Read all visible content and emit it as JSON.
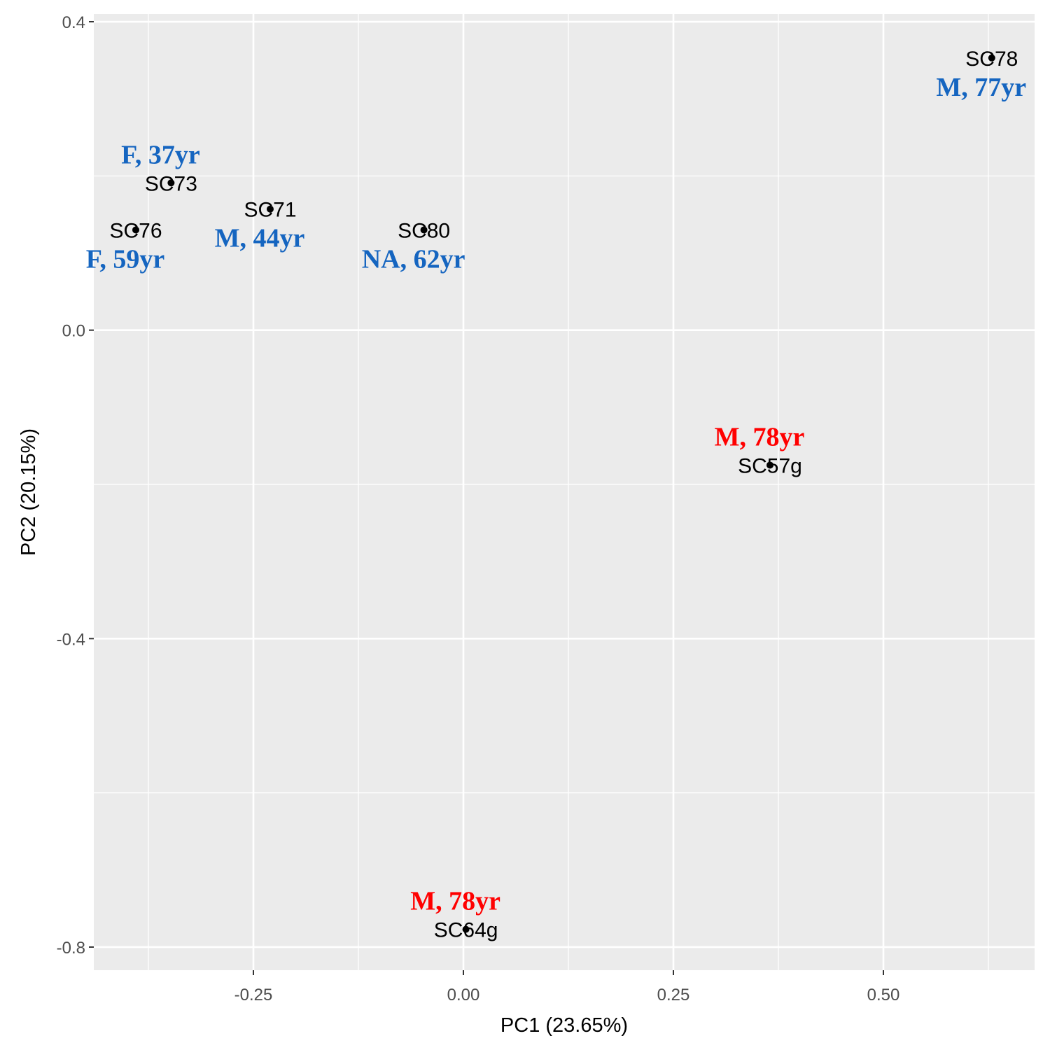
{
  "chart_data": {
    "type": "scatter",
    "title": "",
    "xlabel": "PC1 (23.65%)",
    "ylabel": "PC2 (20.15%)",
    "xlim": [
      -0.44,
      0.68
    ],
    "ylim": [
      -0.83,
      0.41
    ],
    "x_ticks": [
      -0.25,
      0.0,
      0.25,
      0.5
    ],
    "x_tick_labels": [
      "-0.25",
      "0.00",
      "0.25",
      "0.50"
    ],
    "y_ticks": [
      0.4,
      0.0,
      -0.4,
      -0.8
    ],
    "y_tick_labels": [
      "0.4",
      "0.0",
      "-0.4",
      "-0.8"
    ],
    "grid": true,
    "legend": "none",
    "colors": {
      "panel": "#ebebeb",
      "grid": "#ffffff",
      "point": "#000000",
      "annotation_blue": "#1565c0",
      "annotation_red": "#ff0000"
    },
    "points": [
      {
        "label": "SC78",
        "x": 0.629,
        "y": 0.353,
        "annotation": "M, 77yr",
        "annotation_color": "blue",
        "annotation_position": "below"
      },
      {
        "label": "SC73",
        "x": -0.348,
        "y": 0.191,
        "annotation": "F, 37yr",
        "annotation_color": "blue",
        "annotation_position": "above"
      },
      {
        "label": "SC71",
        "x": -0.23,
        "y": 0.157,
        "annotation": "M, 44yr",
        "annotation_color": "blue",
        "annotation_position": "below"
      },
      {
        "label": "SC76",
        "x": -0.39,
        "y": 0.13,
        "annotation": "F, 59yr",
        "annotation_color": "blue",
        "annotation_position": "below"
      },
      {
        "label": "SC80",
        "x": -0.047,
        "y": 0.13,
        "annotation": "NA, 62yr",
        "annotation_color": "blue",
        "annotation_position": "below"
      },
      {
        "label": "SC57g",
        "x": 0.365,
        "y": -0.175,
        "annotation": "M, 78yr",
        "annotation_color": "red",
        "annotation_position": "above"
      },
      {
        "label": "SC64g",
        "x": 0.003,
        "y": -0.777,
        "annotation": "M, 78yr",
        "annotation_color": "red",
        "annotation_position": "above"
      }
    ]
  }
}
